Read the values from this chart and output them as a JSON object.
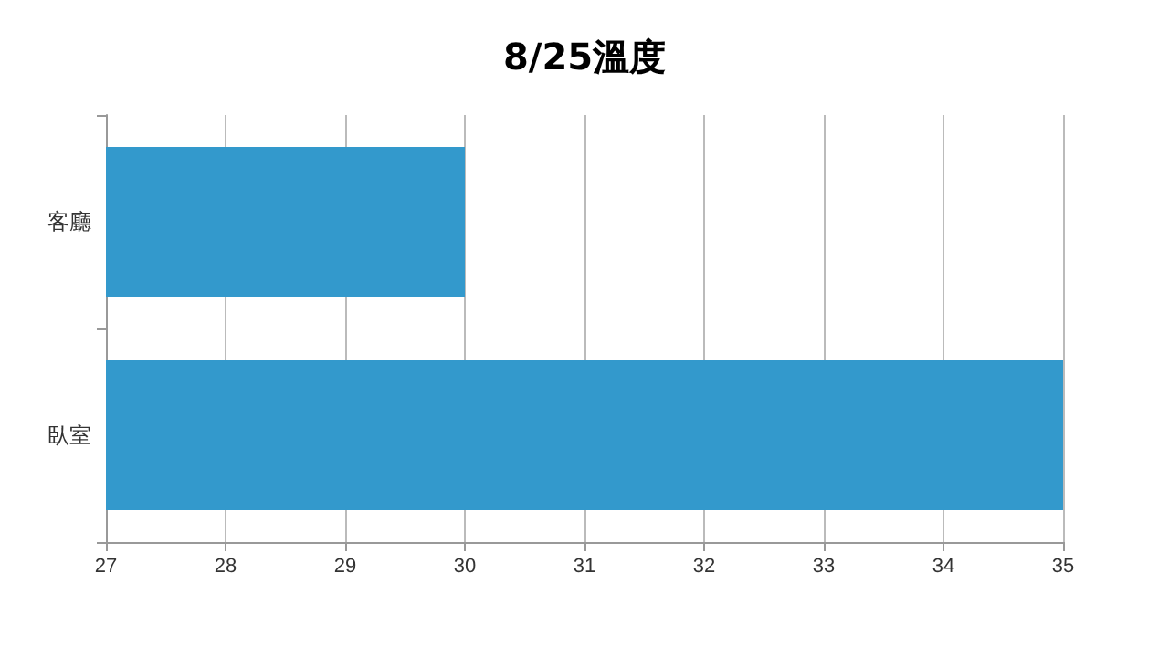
{
  "chart_data": {
    "type": "bar",
    "title": "8/25溫度",
    "orientation": "horizontal",
    "categories": [
      "客廳",
      "臥室"
    ],
    "series": [
      {
        "color": "#3399cc",
        "values": [
          30,
          35
        ]
      }
    ],
    "xlim": [
      27,
      35
    ],
    "xticks": [
      27,
      28,
      29,
      30,
      31,
      32,
      33,
      34,
      35
    ],
    "grid": "x"
  }
}
